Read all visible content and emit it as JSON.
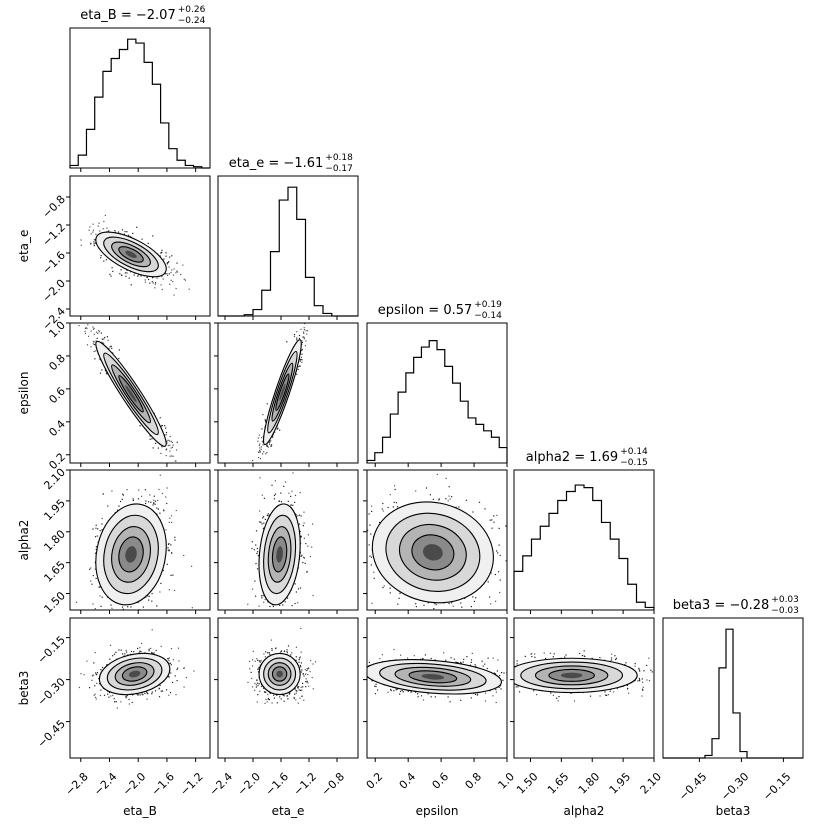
{
  "chart_data": {
    "type": "corner",
    "parameters": [
      {
        "name": "eta_B",
        "median": "−2.07",
        "plus": "+0.26",
        "minus": "−0.24",
        "title_prefix": "eta_B = ",
        "range": [
          -2.95,
          -1.0
        ],
        "ticks": [
          -2.8,
          -2.4,
          -2.0,
          -1.6,
          -1.2
        ],
        "tick_labels": [
          "−2.8",
          "−2.4",
          "−2.0",
          "−1.6",
          "−1.2"
        ],
        "hist": [
          0.02,
          0.1,
          0.3,
          0.55,
          0.75,
          0.85,
          0.92,
          1.0,
          0.97,
          0.82,
          0.65,
          0.35,
          0.15,
          0.06,
          0.02,
          0.01,
          0.0
        ]
      },
      {
        "name": "eta_e",
        "median": "−1.61",
        "plus": "+0.18",
        "minus": "−0.17",
        "title_prefix": "eta_e = ",
        "range": [
          -2.5,
          -0.5
        ],
        "ticks": [
          -2.4,
          -2.0,
          -1.6,
          -1.2,
          -0.8
        ],
        "tick_labels": [
          "−2.4",
          "−2.0",
          "−1.6",
          "−1.2",
          "−0.8"
        ],
        "hist": [
          0.0,
          0.0,
          0.0,
          0.01,
          0.05,
          0.2,
          0.5,
          0.9,
          1.0,
          0.75,
          0.3,
          0.08,
          0.02,
          0.0,
          0.0,
          0.0
        ]
      },
      {
        "name": "epsilon",
        "median": "0.57",
        "plus": "+0.19",
        "minus": "−0.14",
        "title_prefix": "epsilon = ",
        "range": [
          0.15,
          1.0
        ],
        "ticks": [
          0.2,
          0.4,
          0.6,
          0.8,
          1.0
        ],
        "tick_labels": [
          "0.2",
          "0.4",
          "0.6",
          "0.8",
          "1.0"
        ],
        "hist": [
          0.02,
          0.08,
          0.2,
          0.38,
          0.55,
          0.7,
          0.82,
          0.9,
          0.95,
          0.88,
          0.75,
          0.62,
          0.48,
          0.35,
          0.3,
          0.25,
          0.2,
          0.12
        ]
      },
      {
        "name": "alpha2",
        "median": "1.69",
        "plus": "+0.14",
        "minus": "−0.15",
        "title_prefix": "alpha2 = ",
        "range": [
          1.42,
          2.1
        ],
        "ticks": [
          1.5,
          1.65,
          1.8,
          1.95,
          2.1
        ],
        "tick_labels": [
          "1.50",
          "1.65",
          "1.80",
          "1.95",
          "2.10"
        ],
        "hist": [
          0.3,
          0.42,
          0.55,
          0.65,
          0.75,
          0.85,
          0.92,
          0.97,
          0.95,
          0.85,
          0.68,
          0.55,
          0.4,
          0.2,
          0.06,
          0.02
        ]
      },
      {
        "name": "beta3",
        "median": "−0.28",
        "plus": "+0.03",
        "minus": "−0.03",
        "title_prefix": "beta3 = ",
        "range": [
          -0.58,
          -0.08
        ],
        "ticks": [
          -0.45,
          -0.3,
          -0.15
        ],
        "tick_labels": [
          "−0.45",
          "−0.30",
          "−0.15"
        ],
        "hist": [
          0.0,
          0.0,
          0.0,
          0.0,
          0.0,
          0.0,
          0.02,
          0.15,
          0.7,
          1.0,
          0.35,
          0.05,
          0.0,
          0.0,
          0.0,
          0.0,
          0.0,
          0.0,
          0.0,
          0.0
        ]
      }
    ],
    "pairs": [
      {
        "row": 1,
        "col": 0,
        "mx": -2.1,
        "my": -1.62,
        "sx": 0.2,
        "sy": 0.13,
        "rho": -0.65
      },
      {
        "row": 2,
        "col": 0,
        "mx": -2.1,
        "my": 0.57,
        "sx": 0.2,
        "sy": 0.13,
        "rho": -0.95
      },
      {
        "row": 2,
        "col": 1,
        "mx": -1.58,
        "my": 0.58,
        "sx": 0.11,
        "sy": 0.13,
        "rho": 0.92
      },
      {
        "row": 3,
        "col": 0,
        "mx": -2.1,
        "my": 1.69,
        "sx": 0.2,
        "sy": 0.1,
        "rho": 0.15
      },
      {
        "row": 3,
        "col": 1,
        "mx": -1.62,
        "my": 1.69,
        "sx": 0.12,
        "sy": 0.1,
        "rho": 0.2
      },
      {
        "row": 3,
        "col": 2,
        "mx": 0.55,
        "my": 1.7,
        "sx": 0.15,
        "sy": 0.1,
        "rho": -0.1
      },
      {
        "row": 4,
        "col": 0,
        "mx": -2.05,
        "my": -0.28,
        "sx": 0.2,
        "sy": 0.03,
        "rho": 0.25
      },
      {
        "row": 4,
        "col": 1,
        "mx": -1.62,
        "my": -0.28,
        "sx": 0.12,
        "sy": 0.03,
        "rho": 0.0
      },
      {
        "row": 4,
        "col": 2,
        "mx": 0.55,
        "my": -0.29,
        "sx": 0.17,
        "sy": 0.025,
        "rho": -0.3
      },
      {
        "row": 4,
        "col": 3,
        "mx": 1.7,
        "my": -0.285,
        "sx": 0.13,
        "sy": 0.025,
        "rho": 0.0
      }
    ],
    "grid": false
  }
}
